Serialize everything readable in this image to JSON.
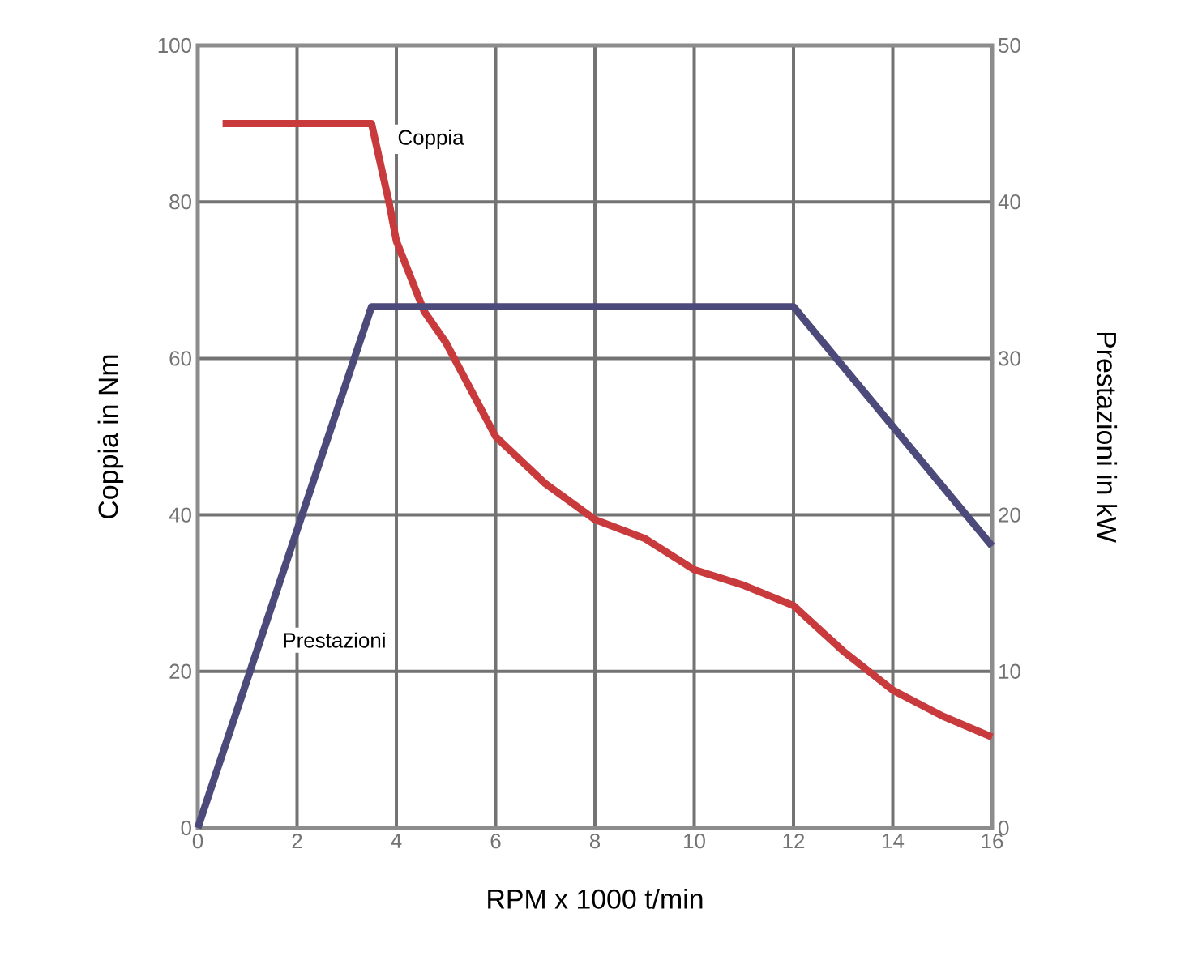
{
  "chart_data": {
    "type": "line",
    "xlabel": "RPM x 1000 t/min",
    "ylabel": "Coppia in Nm",
    "y2label": "Prestazioni in kW",
    "xlim": [
      0,
      16
    ],
    "xticks": [
      0,
      2,
      4,
      6,
      8,
      10,
      12,
      14,
      16
    ],
    "ylim": [
      0,
      100
    ],
    "yticks": [
      0,
      20,
      40,
      60,
      80,
      100
    ],
    "y2lim": [
      0,
      50
    ],
    "y2ticks": [
      0,
      10,
      20,
      30,
      40,
      50
    ],
    "grid": true,
    "series": [
      {
        "name": "Coppia",
        "color": "#c83a3c",
        "x": [
          0.5,
          3.5,
          3.85,
          4,
          4.56,
          5,
          6,
          7,
          8,
          9,
          10,
          11,
          12,
          13,
          14,
          15,
          16
        ],
        "values": [
          90,
          90,
          80,
          75,
          66,
          62,
          50,
          44,
          39.4,
          37,
          33,
          31,
          28.4,
          22.6,
          17.6,
          14.3,
          11.6
        ]
      },
      {
        "name": "Prestazioni",
        "color": "#4b4a7a",
        "axis": "y2",
        "x": [
          0,
          3.5,
          12,
          16
        ],
        "values": [
          0,
          33.3,
          33.3,
          18
        ]
      }
    ]
  }
}
